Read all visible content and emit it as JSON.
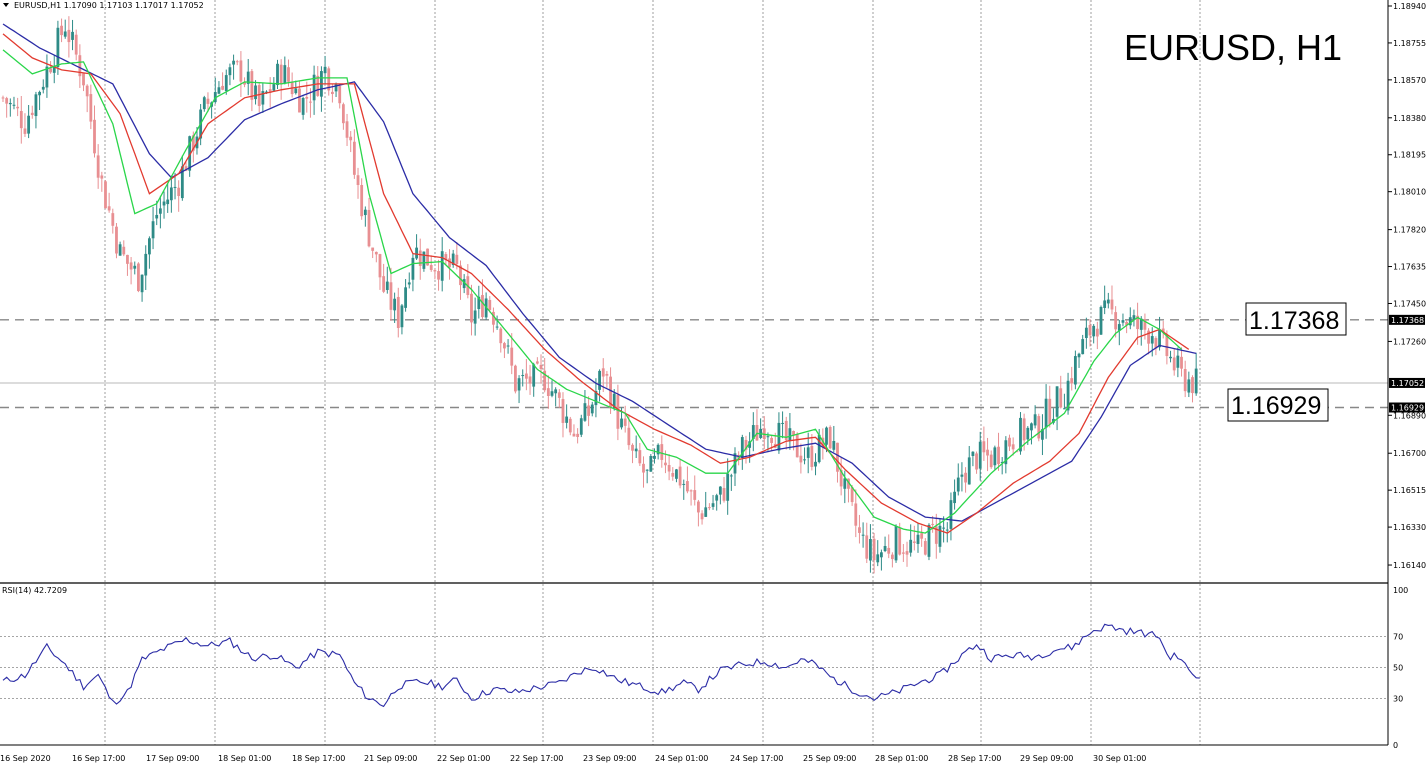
{
  "header": {
    "symbol_timeframe": "EURUSD,H1",
    "ohlc": "1.17090 1.17103 1.17017 1.17052"
  },
  "title": "EURUSD, H1",
  "levels": {
    "resistance": "1.17368",
    "support": "1.16929",
    "resistance_tag": "1.17368",
    "support_tag": "1.16929",
    "current_tag": "1.17052"
  },
  "rsi_header": "RSI(14) 42.7209",
  "colors": {
    "bull": "#2e8b87",
    "bear": "#e88f92",
    "ma_fast": "#2ad64a",
    "ma_mid": "#e23a2f",
    "ma_slow": "#2b2ca6",
    "rsi": "#2b2ca6"
  },
  "chart_data": {
    "type": "candlestick",
    "price_axis": {
      "ylim": [
        1.1605,
        1.1897
      ],
      "ticks": [
        "1.18940",
        "1.18755",
        "1.18570",
        "1.18380",
        "1.18195",
        "1.18010",
        "1.17820",
        "1.17635",
        "1.17450",
        "1.17260",
        "1.16890",
        "1.16700",
        "1.16515",
        "1.16330",
        "1.16140"
      ]
    },
    "time_labels": [
      "16 Sep 2020",
      "16 Sep 17:00",
      "17 Sep 09:00",
      "18 Sep 01:00",
      "18 Sep 17:00",
      "21 Sep 09:00",
      "22 Sep 01:00",
      "22 Sep 17:00",
      "23 Sep 09:00",
      "24 Sep 01:00",
      "24 Sep 17:00",
      "25 Sep 09:00",
      "28 Sep 01:00",
      "28 Sep 17:00",
      "29 Sep 09:00",
      "30 Sep 01:00"
    ],
    "horizontal_levels": [
      1.17368,
      1.16929,
      1.17052
    ],
    "close_path": [
      [
        0,
        1.1848
      ],
      [
        6,
        1.1836
      ],
      [
        12,
        1.1862
      ],
      [
        17,
        1.1885
      ],
      [
        22,
        1.1858
      ],
      [
        27,
        1.1805
      ],
      [
        32,
        1.177
      ],
      [
        37,
        1.1758
      ],
      [
        42,
        1.179
      ],
      [
        48,
        1.1806
      ],
      [
        55,
        1.1842
      ],
      [
        60,
        1.1858
      ],
      [
        65,
        1.1862
      ],
      [
        70,
        1.1843
      ],
      [
        76,
        1.1862
      ],
      [
        82,
        1.1846
      ],
      [
        88,
        1.1862
      ],
      [
        92,
        1.1852
      ],
      [
        96,
        1.181
      ],
      [
        100,
        1.178
      ],
      [
        104,
        1.1752
      ],
      [
        108,
        1.1738
      ],
      [
        112,
        1.1772
      ],
      [
        118,
        1.1765
      ],
      [
        124,
        1.1762
      ],
      [
        128,
        1.1738
      ],
      [
        132,
        1.1748
      ],
      [
        136,
        1.1732
      ],
      [
        140,
        1.1705
      ],
      [
        148,
        1.1708
      ],
      [
        152,
        1.1695
      ],
      [
        156,
        1.168
      ],
      [
        160,
        1.169
      ],
      [
        164,
        1.1712
      ],
      [
        168,
        1.1688
      ],
      [
        172,
        1.1668
      ],
      [
        176,
        1.1658
      ],
      [
        180,
        1.167
      ],
      [
        186,
        1.1655
      ],
      [
        190,
        1.164
      ],
      [
        196,
        1.1648
      ],
      [
        202,
        1.1672
      ],
      [
        208,
        1.1685
      ],
      [
        214,
        1.1676
      ],
      [
        220,
        1.1668
      ],
      [
        226,
        1.1678
      ],
      [
        230,
        1.165
      ],
      [
        234,
        1.1628
      ],
      [
        238,
        1.1618
      ],
      [
        244,
        1.1626
      ],
      [
        250,
        1.1622
      ],
      [
        254,
        1.163
      ],
      [
        258,
        1.1632
      ],
      [
        262,
        1.166
      ],
      [
        266,
        1.1668
      ],
      [
        270,
        1.1668
      ],
      [
        274,
        1.1675
      ],
      [
        278,
        1.168
      ],
      [
        282,
        1.1682
      ],
      [
        286,
        1.1692
      ],
      [
        290,
        1.17
      ],
      [
        294,
        1.172
      ],
      [
        298,
        1.1735
      ],
      [
        302,
        1.174
      ],
      [
        306,
        1.1738
      ],
      [
        310,
        1.1733
      ],
      [
        314,
        1.1731
      ],
      [
        318,
        1.172
      ],
      [
        322,
        1.1708
      ],
      [
        326,
        1.1705
      ]
    ],
    "ma_fast_path": [
      [
        0,
        1.1872
      ],
      [
        8,
        1.186
      ],
      [
        16,
        1.1865
      ],
      [
        22,
        1.1866
      ],
      [
        30,
        1.1835
      ],
      [
        36,
        1.179
      ],
      [
        42,
        1.1795
      ],
      [
        50,
        1.1822
      ],
      [
        58,
        1.1848
      ],
      [
        66,
        1.1856
      ],
      [
        76,
        1.1855
      ],
      [
        86,
        1.1858
      ],
      [
        94,
        1.1858
      ],
      [
        100,
        1.18
      ],
      [
        106,
        1.176
      ],
      [
        112,
        1.1765
      ],
      [
        120,
        1.1766
      ],
      [
        128,
        1.1752
      ],
      [
        138,
        1.173
      ],
      [
        146,
        1.1712
      ],
      [
        154,
        1.1702
      ],
      [
        162,
        1.1696
      ],
      [
        170,
        1.169
      ],
      [
        176,
        1.1672
      ],
      [
        184,
        1.1668
      ],
      [
        192,
        1.166
      ],
      [
        198,
        1.166
      ],
      [
        206,
        1.168
      ],
      [
        214,
        1.1678
      ],
      [
        222,
        1.1682
      ],
      [
        230,
        1.1658
      ],
      [
        238,
        1.1638
      ],
      [
        246,
        1.1632
      ],
      [
        252,
        1.163
      ],
      [
        260,
        1.164
      ],
      [
        270,
        1.166
      ],
      [
        280,
        1.1676
      ],
      [
        290,
        1.169
      ],
      [
        298,
        1.1716
      ],
      [
        304,
        1.173
      ],
      [
        310,
        1.1738
      ],
      [
        316,
        1.1732
      ],
      [
        322,
        1.1722
      ]
    ],
    "ma_mid_path": [
      [
        0,
        1.188
      ],
      [
        8,
        1.1868
      ],
      [
        16,
        1.1862
      ],
      [
        24,
        1.186
      ],
      [
        32,
        1.184
      ],
      [
        40,
        1.18
      ],
      [
        48,
        1.181
      ],
      [
        56,
        1.1835
      ],
      [
        66,
        1.1848
      ],
      [
        76,
        1.1852
      ],
      [
        86,
        1.1855
      ],
      [
        96,
        1.1855
      ],
      [
        104,
        1.18
      ],
      [
        112,
        1.177
      ],
      [
        120,
        1.1768
      ],
      [
        128,
        1.176
      ],
      [
        138,
        1.1742
      ],
      [
        148,
        1.1722
      ],
      [
        158,
        1.1706
      ],
      [
        168,
        1.1692
      ],
      [
        178,
        1.1682
      ],
      [
        188,
        1.1674
      ],
      [
        196,
        1.1665
      ],
      [
        204,
        1.1668
      ],
      [
        214,
        1.1676
      ],
      [
        222,
        1.1678
      ],
      [
        230,
        1.1662
      ],
      [
        240,
        1.1645
      ],
      [
        250,
        1.1635
      ],
      [
        258,
        1.163
      ],
      [
        266,
        1.164
      ],
      [
        276,
        1.1655
      ],
      [
        286,
        1.1666
      ],
      [
        294,
        1.168
      ],
      [
        302,
        1.1708
      ],
      [
        310,
        1.1728
      ],
      [
        316,
        1.1732
      ],
      [
        324,
        1.1722
      ]
    ],
    "ma_slow_path": [
      [
        0,
        1.1885
      ],
      [
        10,
        1.1873
      ],
      [
        20,
        1.1864
      ],
      [
        30,
        1.1855
      ],
      [
        40,
        1.182
      ],
      [
        46,
        1.1808
      ],
      [
        56,
        1.1818
      ],
      [
        66,
        1.1837
      ],
      [
        76,
        1.1845
      ],
      [
        86,
        1.1852
      ],
      [
        96,
        1.1856
      ],
      [
        104,
        1.1836
      ],
      [
        112,
        1.18
      ],
      [
        122,
        1.1778
      ],
      [
        132,
        1.1764
      ],
      [
        142,
        1.174
      ],
      [
        152,
        1.1718
      ],
      [
        162,
        1.1705
      ],
      [
        172,
        1.1696
      ],
      [
        182,
        1.1684
      ],
      [
        192,
        1.1672
      ],
      [
        202,
        1.1668
      ],
      [
        212,
        1.1672
      ],
      [
        222,
        1.1675
      ],
      [
        232,
        1.1665
      ],
      [
        242,
        1.1648
      ],
      [
        252,
        1.1638
      ],
      [
        262,
        1.1636
      ],
      [
        272,
        1.1646
      ],
      [
        282,
        1.1656
      ],
      [
        292,
        1.1666
      ],
      [
        300,
        1.1688
      ],
      [
        308,
        1.1714
      ],
      [
        316,
        1.1724
      ],
      [
        326,
        1.172
      ]
    ],
    "rsi": {
      "ylim": [
        0,
        100
      ],
      "ticks": [
        "100",
        "70",
        "50",
        "30",
        "0"
      ],
      "levels": [
        70,
        50,
        30
      ],
      "path": [
        [
          0,
          41
        ],
        [
          6,
          45
        ],
        [
          12,
          63
        ],
        [
          17,
          52
        ],
        [
          22,
          38
        ],
        [
          26,
          45
        ],
        [
          30,
          27
        ],
        [
          34,
          34
        ],
        [
          38,
          55
        ],
        [
          44,
          62
        ],
        [
          50,
          68
        ],
        [
          56,
          64
        ],
        [
          62,
          67
        ],
        [
          68,
          56
        ],
        [
          74,
          58
        ],
        [
          80,
          50
        ],
        [
          86,
          60
        ],
        [
          92,
          58
        ],
        [
          96,
          40
        ],
        [
          100,
          30
        ],
        [
          104,
          26
        ],
        [
          108,
          38
        ],
        [
          114,
          41
        ],
        [
          120,
          38
        ],
        [
          124,
          42
        ],
        [
          128,
          30
        ],
        [
          134,
          36
        ],
        [
          140,
          34
        ],
        [
          148,
          38
        ],
        [
          152,
          40
        ],
        [
          158,
          48
        ],
        [
          162,
          50
        ],
        [
          168,
          42
        ],
        [
          174,
          38
        ],
        [
          180,
          34
        ],
        [
          186,
          40
        ],
        [
          190,
          36
        ],
        [
          196,
          48
        ],
        [
          202,
          52
        ],
        [
          208,
          54
        ],
        [
          214,
          50
        ],
        [
          218,
          55
        ],
        [
          222,
          52
        ],
        [
          226,
          44
        ],
        [
          232,
          36
        ],
        [
          238,
          30
        ],
        [
          244,
          34
        ],
        [
          250,
          40
        ],
        [
          256,
          45
        ],
        [
          262,
          58
        ],
        [
          266,
          65
        ],
        [
          270,
          56
        ],
        [
          276,
          58
        ],
        [
          282,
          57
        ],
        [
          288,
          62
        ],
        [
          292,
          63
        ],
        [
          298,
          74
        ],
        [
          302,
          77
        ],
        [
          306,
          74
        ],
        [
          312,
          72
        ],
        [
          316,
          70
        ],
        [
          318,
          58
        ],
        [
          322,
          56
        ],
        [
          324,
          47
        ],
        [
          327,
          43
        ]
      ]
    }
  }
}
